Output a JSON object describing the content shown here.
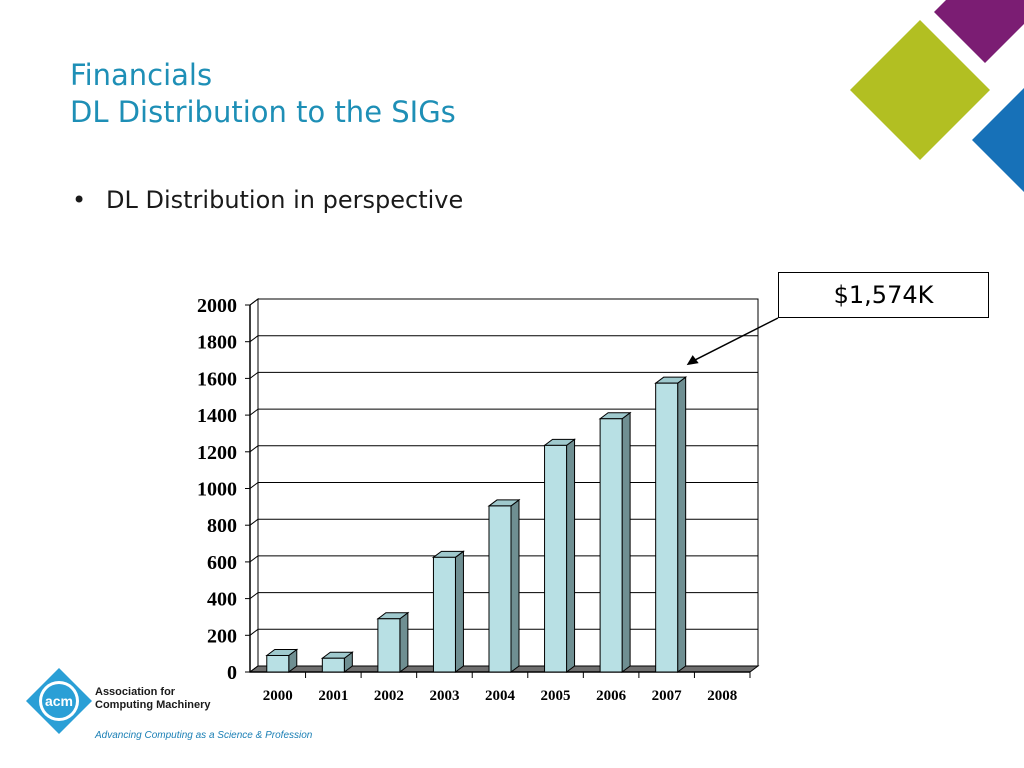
{
  "slide": {
    "title_line1": "Financials",
    "title_line2": "DL Distribution to the SIGs",
    "bullet": "DL Distribution in perspective",
    "callout": "$1,574K"
  },
  "logo": {
    "mark": "acm",
    "line1": "Association for",
    "line2": "Computing Machinery",
    "tagline": "Advancing Computing as a Science & Profession"
  },
  "colors": {
    "title": "#1e8fb6",
    "bar_front": "#b8e0e4",
    "bar_side": "#6f8f92",
    "deco_purple": "#7b1d73",
    "deco_green": "#b2bf22",
    "deco_blue": "#1771b8",
    "logo_blue": "#2a9fd6"
  },
  "chart_data": {
    "type": "bar",
    "categories": [
      "2000",
      "2001",
      "2002",
      "2003",
      "2004",
      "2005",
      "2006",
      "2007",
      "2008"
    ],
    "values": [
      90,
      75,
      290,
      625,
      905,
      1235,
      1380,
      1574,
      0
    ],
    "ylim": [
      0,
      2000
    ],
    "yticks": [
      "0",
      "200",
      "400",
      "600",
      "800",
      "1000",
      "1200",
      "1400",
      "1600",
      "1800",
      "2000"
    ],
    "grid": true,
    "three_d": true
  }
}
